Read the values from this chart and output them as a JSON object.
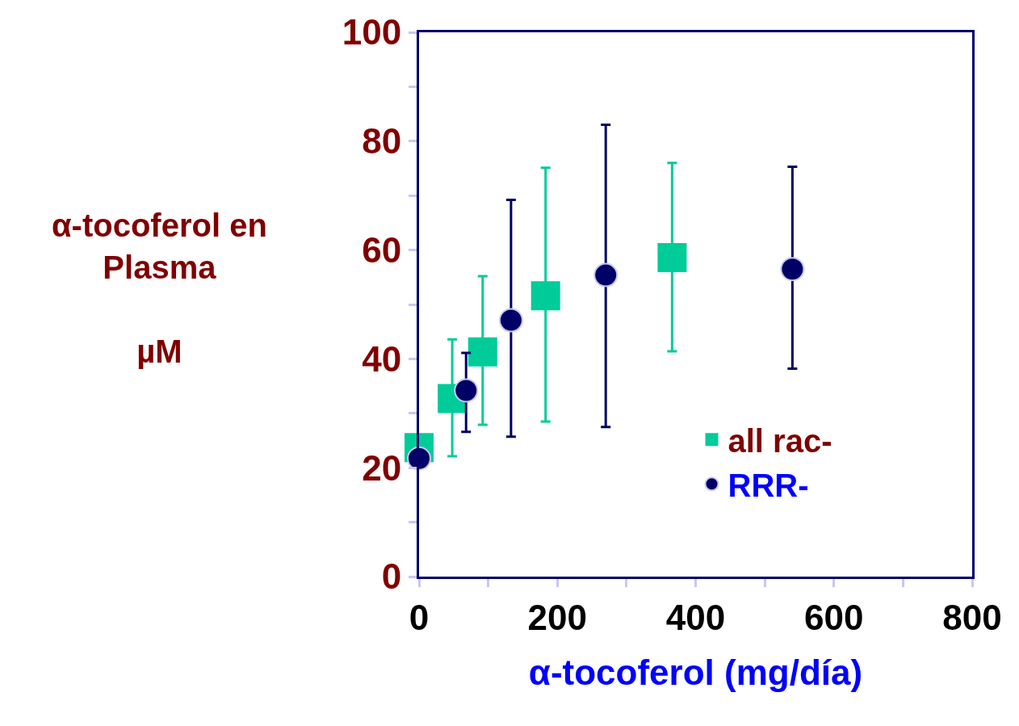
{
  "chart_data": {
    "type": "scatter",
    "xlabel": "α-tocoferol (mg/día)",
    "ylabel": "α-tocoferol en\nPlasma\n\nµM",
    "series": [
      {
        "name": "all rac-",
        "color": "#00cc99",
        "marker": "square",
        "x": [
          0,
          48,
          92,
          183,
          366
        ],
        "values": [
          23.7,
          32.7,
          41.3,
          51.6,
          58.6
        ],
        "errors": [
          null,
          [
            22.1,
            43.6
          ],
          [
            27.9,
            55.2
          ],
          [
            28.5,
            75.1
          ],
          [
            41.4,
            76
          ]
        ]
      },
      {
        "name": "RRR-",
        "color": "#000066",
        "marker": "circle",
        "x": [
          0,
          68,
          133,
          270,
          540
        ],
        "values": [
          21.7,
          34.2,
          47.1,
          55.4,
          56.5
        ],
        "errors": [
          null,
          [
            26.6,
            41.1
          ],
          [
            25.7,
            69.2
          ],
          [
            27.5,
            83
          ],
          [
            38.2,
            75.3
          ]
        ]
      }
    ],
    "xlim": [
      0,
      800
    ],
    "xticks": [
      0,
      {
        "value": 100,
        "label": null
      },
      200,
      {
        "value": 300,
        "label": null
      },
      400,
      {
        "value": 500,
        "label": null
      },
      600,
      {
        "value": 700,
        "label": null
      },
      800
    ],
    "ylim": [
      0,
      100
    ],
    "yticks": [
      0,
      {
        "value": 10,
        "label": null
      },
      20,
      {
        "value": 30,
        "label": null
      },
      40,
      {
        "value": 50,
        "label": null
      },
      60,
      {
        "value": 70,
        "label": null
      },
      80,
      {
        "value": 90,
        "label": null
      },
      100
    ],
    "grid": false,
    "legend": "bottom right"
  }
}
